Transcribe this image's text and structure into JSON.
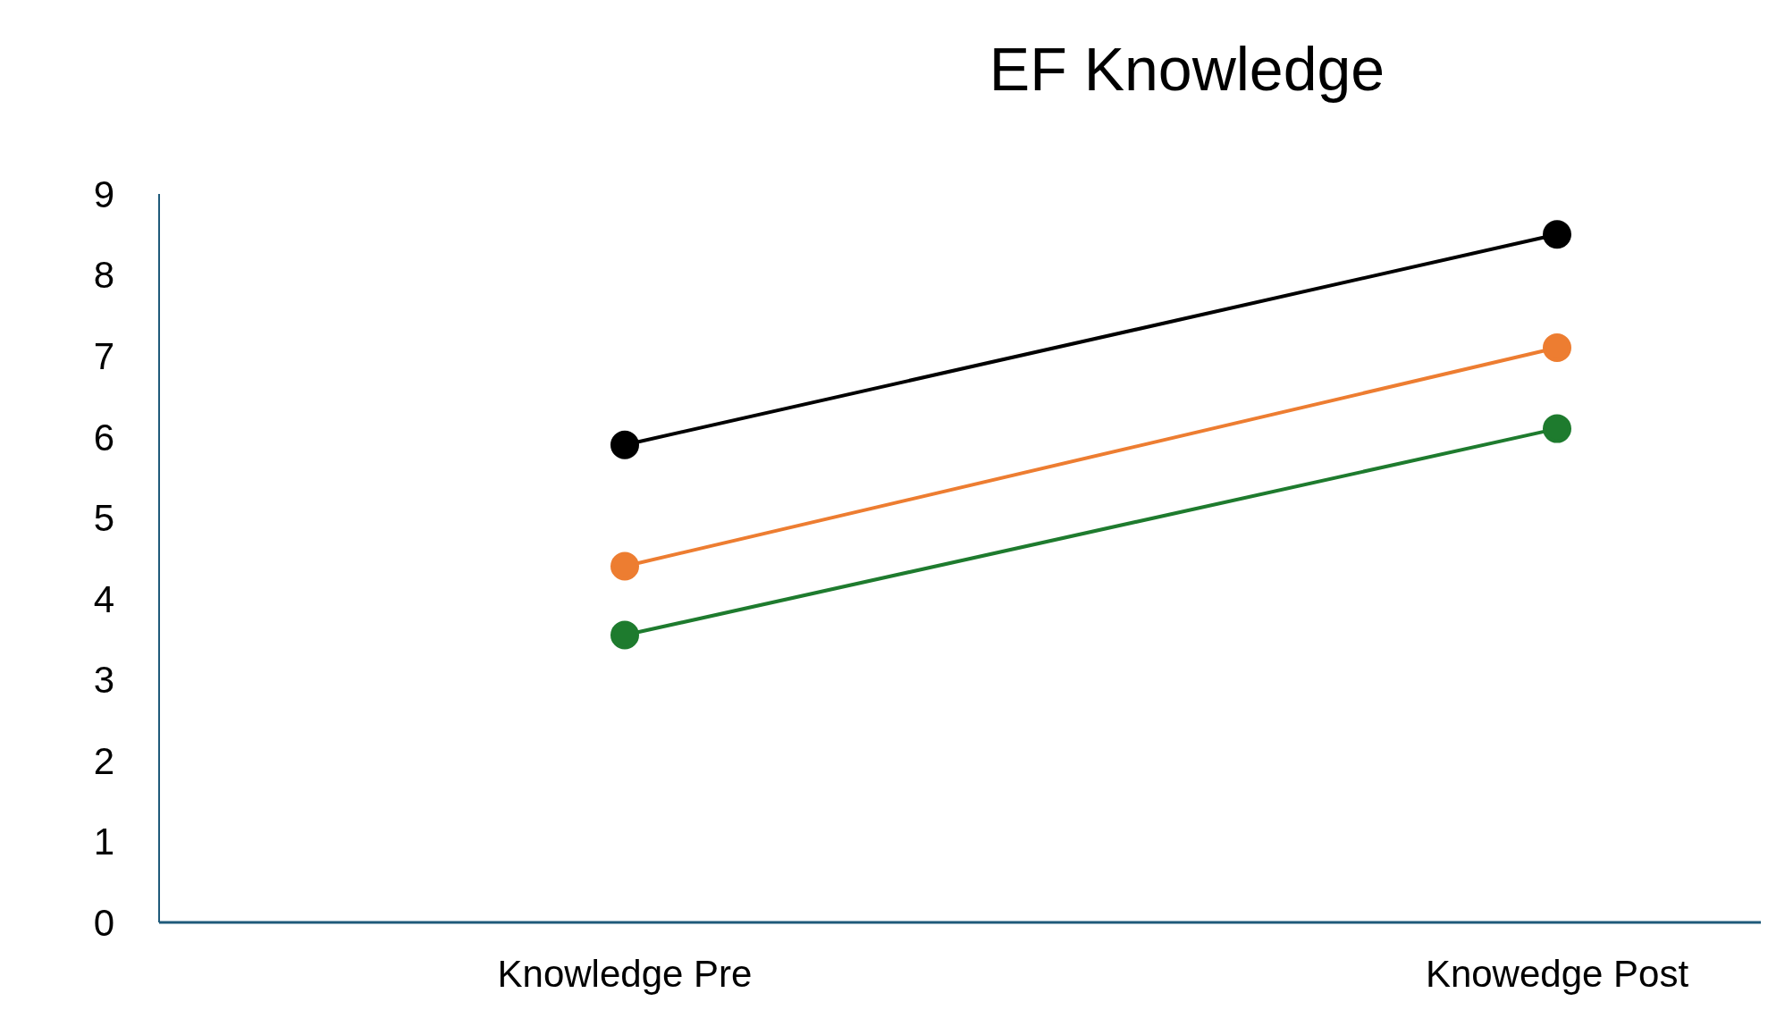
{
  "chart_data": {
    "type": "line",
    "title": "EF Knowledge",
    "categories": [
      "Knowledge Pre",
      "Knowedge Post"
    ],
    "series": [
      {
        "color": "#000000",
        "values": [
          5.9,
          8.5
        ]
      },
      {
        "color": "#ed7d31",
        "values": [
          4.4,
          7.1
        ]
      },
      {
        "color": "#1e7b2e",
        "values": [
          3.55,
          6.1
        ]
      }
    ],
    "ylim": [
      0,
      9
    ],
    "yticks": [
      0,
      1,
      2,
      3,
      4,
      5,
      6,
      7,
      8,
      9
    ],
    "grid": false,
    "legend": false,
    "marker": "circle",
    "line_style": "solid"
  }
}
